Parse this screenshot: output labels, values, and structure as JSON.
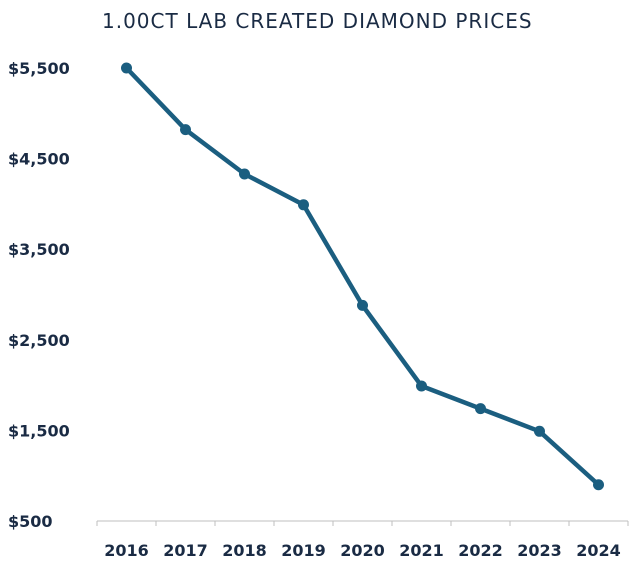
{
  "chart_data": {
    "type": "line",
    "title": "1.00CT LAB CREATED DIAMOND PRICES",
    "xlabel": "",
    "ylabel": "",
    "categories": [
      "2016",
      "2017",
      "2018",
      "2019",
      "2020",
      "2021",
      "2022",
      "2023",
      "2024"
    ],
    "series": [
      {
        "values": [
          5500,
          4820,
          4330,
          3990,
          2880,
          1990,
          1740,
          1490,
          900
        ]
      }
    ],
    "ylim": [
      500,
      5500
    ],
    "yticks": [
      500,
      1500,
      2500,
      3500,
      4500,
      5500
    ],
    "ytick_labels": [
      "$500",
      "$1,500",
      "$2,500",
      "$3,500",
      "$4,500",
      "$5,500"
    ],
    "grid": false,
    "legend": "none",
    "colors": {
      "line": "#1b5e80",
      "text": "#1a2b44",
      "axis": "#bfbfbf"
    }
  }
}
